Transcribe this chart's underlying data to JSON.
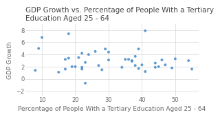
{
  "title": "GDP Growth vs. Percentage of People With a Tertiary\nEducation Aged 25 - 64",
  "xlabel": "Percentage of People With a Tertiary Education Aged 25 - 64",
  "ylabel": "GDP Growth",
  "xlim": [
    5,
    57
  ],
  "ylim": [
    -2.8,
    9.0
  ],
  "xticks": [
    10,
    20,
    30,
    40,
    50
  ],
  "yticks": [
    -2,
    0,
    2,
    4,
    6,
    8
  ],
  "scatter_color": "#4d8fcc",
  "background_color": "#ffffff",
  "points": [
    [
      8,
      1.4
    ],
    [
      9,
      5.0
    ],
    [
      10,
      6.8
    ],
    [
      15,
      1.1
    ],
    [
      17,
      1.6
    ],
    [
      17,
      3.2
    ],
    [
      18,
      3.4
    ],
    [
      18,
      7.4
    ],
    [
      19,
      2.0
    ],
    [
      20,
      2.0
    ],
    [
      21,
      3.5
    ],
    [
      22,
      4.2
    ],
    [
      22,
      1.6
    ],
    [
      22,
      1.9
    ],
    [
      23,
      2.7
    ],
    [
      23,
      -0.7
    ],
    [
      24,
      4.0
    ],
    [
      26,
      4.5
    ],
    [
      27,
      2.2
    ],
    [
      28,
      1.5
    ],
    [
      29,
      4.9
    ],
    [
      30,
      4.4
    ],
    [
      30,
      3.1
    ],
    [
      34,
      1.9
    ],
    [
      35,
      3.2
    ],
    [
      36,
      3.2
    ],
    [
      37,
      3.0
    ],
    [
      37,
      2.9
    ],
    [
      38,
      3.7
    ],
    [
      38,
      2.2
    ],
    [
      39,
      4.9
    ],
    [
      39,
      1.7
    ],
    [
      40,
      2.3
    ],
    [
      41,
      7.9
    ],
    [
      41,
      1.2
    ],
    [
      44,
      2.6
    ],
    [
      44,
      1.9
    ],
    [
      45,
      2.0
    ],
    [
      46,
      3.1
    ],
    [
      47,
      2.3
    ],
    [
      49,
      1.8
    ],
    [
      50,
      3.3
    ],
    [
      54,
      3.0
    ],
    [
      55,
      1.6
    ]
  ],
  "title_fontsize": 7.5,
  "label_fontsize": 6.5,
  "tick_fontsize": 6,
  "marker_size": 8,
  "grid_color": "#dddddd"
}
